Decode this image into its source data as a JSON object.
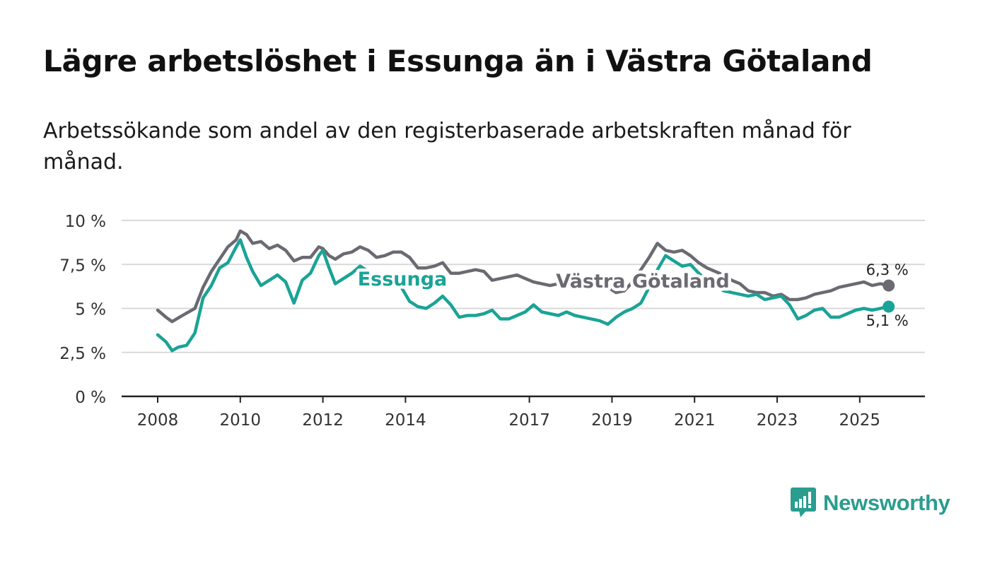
{
  "title": "Lägre arbetslöshet i Essunga än i Västra Götaland",
  "subtitle": "Arbetssökande som andel av den registerbaserade arbetskraften månad för månad.",
  "brand": {
    "name": "Newsworthy"
  },
  "colors": {
    "essunga": "#1aa396",
    "vastra": "#6b6a72",
    "grid": "#d9d9d9",
    "axis": "#222222"
  },
  "chart_data": {
    "type": "line",
    "title": "Lägre arbetslöshet i Essunga än i Västra Götaland",
    "xlabel": "",
    "ylabel": "",
    "xlim": [
      2008.0,
      2026.2
    ],
    "ylim": [
      0,
      10
    ],
    "grid": true,
    "y_ticks": [
      {
        "value": 0,
        "label": "0 %"
      },
      {
        "value": 2.5,
        "label": "2,5 %"
      },
      {
        "value": 5,
        "label": "5 %"
      },
      {
        "value": 7.5,
        "label": "7,5 %"
      },
      {
        "value": 10,
        "label": "10 %"
      }
    ],
    "x_ticks": [
      {
        "value": 2008,
        "label": "2008"
      },
      {
        "value": 2010,
        "label": "2010"
      },
      {
        "value": 2012,
        "label": "2012"
      },
      {
        "value": 2014,
        "label": "2014"
      },
      {
        "value": 2017,
        "label": "2017"
      },
      {
        "value": 2019,
        "label": "2019"
      },
      {
        "value": 2021,
        "label": "2021"
      },
      {
        "value": 2023,
        "label": "2023"
      },
      {
        "value": 2025,
        "label": "2025"
      }
    ],
    "series": [
      {
        "name": "Västra Götaland",
        "label": "Västra Götaland",
        "end_label": "6,3 %",
        "x": [
          2008.0,
          2008.2,
          2008.35,
          2008.6,
          2008.9,
          2009.1,
          2009.3,
          2009.5,
          2009.7,
          2009.9,
          2010.0,
          2010.15,
          2010.3,
          2010.5,
          2010.7,
          2010.9,
          2011.1,
          2011.3,
          2011.5,
          2011.7,
          2011.9,
          2012.0,
          2012.15,
          2012.3,
          2012.5,
          2012.7,
          2012.9,
          2013.1,
          2013.3,
          2013.5,
          2013.7,
          2013.9,
          2014.1,
          2014.3,
          2014.5,
          2014.7,
          2014.9,
          2015.1,
          2015.3,
          2015.5,
          2015.7,
          2015.9,
          2016.1,
          2016.3,
          2016.5,
          2016.7,
          2016.9,
          2017.1,
          2017.3,
          2017.5,
          2017.7,
          2017.9,
          2018.1,
          2018.3,
          2018.5,
          2018.7,
          2018.9,
          2019.1,
          2019.3,
          2019.5,
          2019.7,
          2019.9,
          2020.1,
          2020.3,
          2020.5,
          2020.7,
          2020.9,
          2021.1,
          2021.3,
          2021.5,
          2021.7,
          2021.9,
          2022.1,
          2022.3,
          2022.5,
          2022.7,
          2022.9,
          2023.1,
          2023.3,
          2023.5,
          2023.7,
          2023.9,
          2024.1,
          2024.3,
          2024.5,
          2024.7,
          2024.9,
          2025.1,
          2025.3,
          2025.5,
          2025.7
        ],
        "values": [
          4.9,
          4.5,
          4.25,
          4.6,
          5.0,
          6.2,
          7.1,
          7.8,
          8.5,
          8.9,
          9.4,
          9.2,
          8.7,
          8.8,
          8.4,
          8.6,
          8.3,
          7.7,
          7.9,
          7.9,
          8.5,
          8.4,
          8.0,
          7.8,
          8.1,
          8.2,
          8.5,
          8.3,
          7.9,
          8.0,
          8.2,
          8.2,
          7.9,
          7.3,
          7.3,
          7.4,
          7.6,
          7.0,
          7.0,
          7.1,
          7.2,
          7.1,
          6.6,
          6.7,
          6.8,
          6.9,
          6.7,
          6.5,
          6.4,
          6.3,
          6.4,
          6.3,
          6.5,
          6.6,
          6.3,
          6.3,
          6.2,
          5.9,
          6.0,
          6.5,
          7.2,
          7.9,
          8.7,
          8.3,
          8.2,
          8.3,
          8.0,
          7.6,
          7.3,
          7.1,
          6.9,
          6.6,
          6.4,
          6.0,
          5.9,
          5.9,
          5.7,
          5.8,
          5.5,
          5.5,
          5.6,
          5.8,
          5.9,
          6.0,
          6.2,
          6.3,
          6.4,
          6.5,
          6.3,
          6.4,
          6.3
        ]
      },
      {
        "name": "Essunga",
        "label": "Essunga",
        "end_label": "5,1 %",
        "x": [
          2008.0,
          2008.2,
          2008.35,
          2008.5,
          2008.7,
          2008.9,
          2009.1,
          2009.3,
          2009.5,
          2009.7,
          2009.9,
          2010.0,
          2010.15,
          2010.3,
          2010.5,
          2010.7,
          2010.9,
          2011.1,
          2011.3,
          2011.5,
          2011.7,
          2011.9,
          2012.0,
          2012.15,
          2012.3,
          2012.5,
          2012.7,
          2012.9,
          2013.1,
          2013.3,
          2013.5,
          2013.7,
          2013.9,
          2014.1,
          2014.3,
          2014.5,
          2014.7,
          2014.9,
          2015.1,
          2015.3,
          2015.5,
          2015.7,
          2015.9,
          2016.1,
          2016.3,
          2016.5,
          2016.7,
          2016.9,
          2017.1,
          2017.3,
          2017.5,
          2017.7,
          2017.9,
          2018.1,
          2018.3,
          2018.5,
          2018.7,
          2018.9,
          2019.1,
          2019.3,
          2019.5,
          2019.7,
          2019.9,
          2020.1,
          2020.3,
          2020.5,
          2020.7,
          2020.9,
          2021.1,
          2021.3,
          2021.5,
          2021.7,
          2021.9,
          2022.1,
          2022.3,
          2022.5,
          2022.7,
          2022.9,
          2023.1,
          2023.3,
          2023.5,
          2023.7,
          2023.9,
          2024.1,
          2024.3,
          2024.5,
          2024.7,
          2024.9,
          2025.1,
          2025.3,
          2025.5,
          2025.7
        ],
        "values": [
          3.5,
          3.1,
          2.6,
          2.8,
          2.9,
          3.6,
          5.6,
          6.3,
          7.3,
          7.6,
          8.5,
          8.9,
          7.9,
          7.1,
          6.3,
          6.6,
          6.9,
          6.5,
          5.3,
          6.6,
          7.0,
          8.0,
          8.3,
          7.3,
          6.4,
          6.7,
          7.0,
          7.4,
          7.1,
          6.6,
          6.5,
          6.4,
          6.2,
          5.4,
          5.1,
          5.0,
          5.3,
          5.7,
          5.2,
          4.5,
          4.6,
          4.6,
          4.7,
          4.9,
          4.4,
          4.4,
          4.6,
          4.8,
          5.2,
          4.8,
          4.7,
          4.6,
          4.8,
          4.6,
          4.5,
          4.4,
          4.3,
          4.1,
          4.5,
          4.8,
          5.0,
          5.3,
          6.2,
          7.2,
          8.0,
          7.7,
          7.4,
          7.5,
          7.0,
          6.6,
          6.3,
          6.0,
          5.9,
          5.8,
          5.7,
          5.8,
          5.5,
          5.6,
          5.7,
          5.2,
          4.4,
          4.6,
          4.9,
          5.0,
          4.5,
          4.5,
          4.7,
          4.9,
          5.0,
          4.9,
          5.0,
          5.1
        ]
      }
    ]
  }
}
